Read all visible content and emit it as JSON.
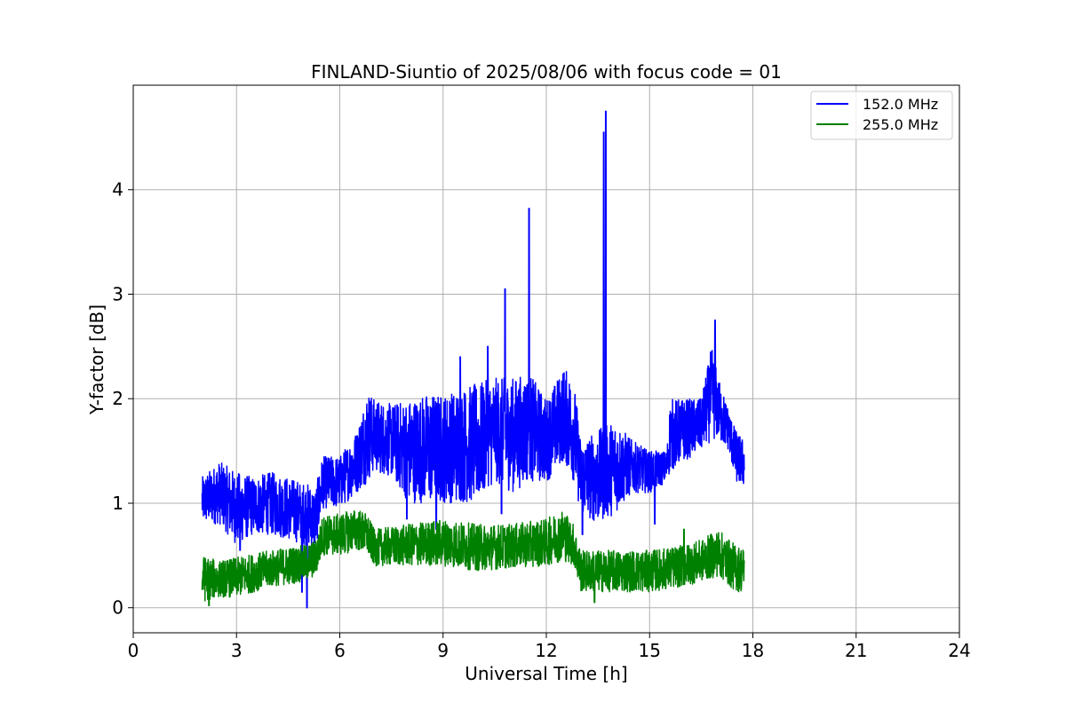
{
  "chart_data": {
    "type": "line",
    "title": "FINLAND-Siuntio of 2025/08/06 with focus code = 01",
    "xlabel": "Universal Time [h]",
    "ylabel": "Y-factor [dB]",
    "xlim": [
      0,
      24
    ],
    "ylim": [
      -0.24,
      5.0
    ],
    "xticks": [
      "0",
      "3",
      "6",
      "9",
      "12",
      "15",
      "18",
      "21",
      "24"
    ],
    "yticks": [
      "0",
      "1",
      "2",
      "3",
      "4"
    ],
    "grid": true,
    "legend_position": "top-right",
    "series": [
      {
        "name": "152.0 MHz",
        "color": "#0000ff",
        "band": [
          [
            2.0,
            0.8,
            1.25
          ],
          [
            2.5,
            0.8,
            1.4
          ],
          [
            3.0,
            0.6,
            1.3
          ],
          [
            3.5,
            0.7,
            1.25
          ],
          [
            4.0,
            0.7,
            1.3
          ],
          [
            4.5,
            0.65,
            1.25
          ],
          [
            5.0,
            0.6,
            1.2
          ],
          [
            5.3,
            0.55,
            1.15
          ],
          [
            5.5,
            0.95,
            1.45
          ],
          [
            6.0,
            0.95,
            1.45
          ],
          [
            6.5,
            1.1,
            1.7
          ],
          [
            6.8,
            1.2,
            2.1
          ],
          [
            7.0,
            1.3,
            2.0
          ],
          [
            7.5,
            1.25,
            1.95
          ],
          [
            8.0,
            1.0,
            2.0
          ],
          [
            8.5,
            1.0,
            2.05
          ],
          [
            9.0,
            1.0,
            2.05
          ],
          [
            9.5,
            1.0,
            2.1
          ],
          [
            10.0,
            1.0,
            2.15
          ],
          [
            10.5,
            1.2,
            2.2
          ],
          [
            11.0,
            1.1,
            2.2
          ],
          [
            11.5,
            1.2,
            2.25
          ],
          [
            12.0,
            1.2,
            2.0
          ],
          [
            12.5,
            1.4,
            2.3
          ],
          [
            12.8,
            1.2,
            2.2
          ],
          [
            13.0,
            0.9,
            1.6
          ],
          [
            13.5,
            0.8,
            1.7
          ],
          [
            14.0,
            0.9,
            1.8
          ],
          [
            14.5,
            1.1,
            1.6
          ],
          [
            15.0,
            1.1,
            1.5
          ],
          [
            15.5,
            1.2,
            1.5
          ],
          [
            15.6,
            1.3,
            2.0
          ],
          [
            16.0,
            1.4,
            2.0
          ],
          [
            16.5,
            1.5,
            2.0
          ],
          [
            16.8,
            1.6,
            2.5
          ],
          [
            17.0,
            1.6,
            2.2
          ],
          [
            17.3,
            1.5,
            1.9
          ],
          [
            17.5,
            1.2,
            1.7
          ],
          [
            17.75,
            1.15,
            1.6
          ]
        ],
        "spikes": [
          [
            3.1,
            0.55
          ],
          [
            4.9,
            0.15
          ],
          [
            5.05,
            0.0
          ],
          [
            7.95,
            0.85
          ],
          [
            8.8,
            0.75
          ],
          [
            9.5,
            2.4
          ],
          [
            10.3,
            2.5
          ],
          [
            10.7,
            0.9
          ],
          [
            10.8,
            3.05
          ],
          [
            11.5,
            3.82
          ],
          [
            13.05,
            0.7
          ],
          [
            13.67,
            4.55
          ],
          [
            13.73,
            4.75
          ],
          [
            15.15,
            0.8
          ],
          [
            16.9,
            2.75
          ]
        ]
      },
      {
        "name": "255.0 MHz",
        "color": "#008000",
        "band": [
          [
            2.0,
            0.05,
            0.5
          ],
          [
            2.5,
            0.1,
            0.45
          ],
          [
            3.0,
            0.1,
            0.48
          ],
          [
            3.5,
            0.15,
            0.52
          ],
          [
            4.0,
            0.2,
            0.55
          ],
          [
            4.5,
            0.22,
            0.58
          ],
          [
            5.0,
            0.25,
            0.6
          ],
          [
            5.3,
            0.3,
            0.65
          ],
          [
            5.5,
            0.5,
            0.88
          ],
          [
            6.0,
            0.5,
            0.9
          ],
          [
            6.5,
            0.55,
            0.95
          ],
          [
            6.8,
            0.5,
            0.9
          ],
          [
            7.0,
            0.4,
            0.75
          ],
          [
            8.0,
            0.4,
            0.8
          ],
          [
            9.0,
            0.4,
            0.85
          ],
          [
            10.0,
            0.35,
            0.8
          ],
          [
            11.0,
            0.38,
            0.8
          ],
          [
            12.0,
            0.4,
            0.85
          ],
          [
            12.5,
            0.45,
            0.95
          ],
          [
            12.8,
            0.4,
            0.8
          ],
          [
            13.0,
            0.15,
            0.55
          ],
          [
            14.0,
            0.15,
            0.55
          ],
          [
            15.0,
            0.15,
            0.55
          ],
          [
            16.0,
            0.2,
            0.6
          ],
          [
            16.5,
            0.25,
            0.65
          ],
          [
            17.0,
            0.3,
            0.75
          ],
          [
            17.5,
            0.15,
            0.6
          ],
          [
            17.75,
            0.15,
            0.58
          ]
        ],
        "spikes": [
          [
            2.2,
            0.02
          ],
          [
            13.4,
            0.05
          ],
          [
            16.0,
            0.75
          ]
        ]
      }
    ]
  }
}
